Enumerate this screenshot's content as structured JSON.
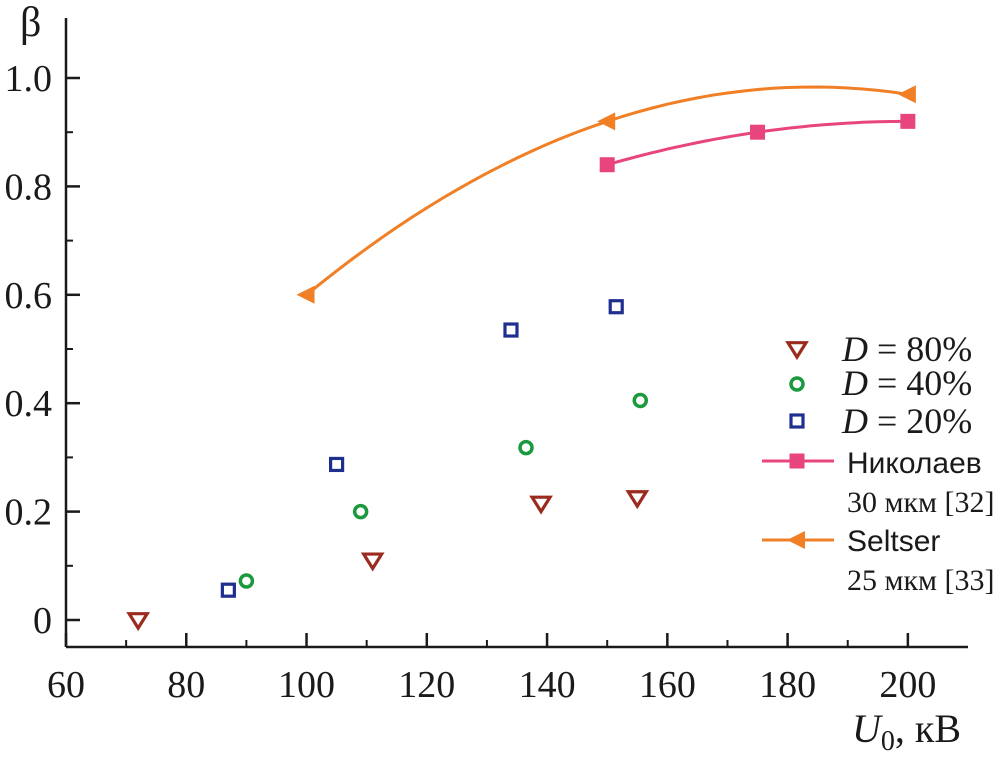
{
  "chart_data": {
    "type": "scatter",
    "xlabel": "U",
    "xlabel_sub": "0",
    "xlabel_unit": ", кВ",
    "ylabel": "β",
    "xlim": [
      60,
      210
    ],
    "ylim": [
      -0.05,
      1.07
    ],
    "xticks": [
      60,
      80,
      100,
      120,
      140,
      160,
      180,
      200
    ],
    "yticks": [
      0,
      0.2,
      0.4,
      0.6,
      0.8,
      1.0
    ],
    "ytick_labels": [
      "0",
      "0.2",
      "0.4",
      "0.6",
      "0.8",
      "1.0"
    ],
    "legend_position": "right",
    "series": [
      {
        "name": "D = 80%",
        "label_italic": "D",
        "label_rest": " = 80%",
        "marker": "triangle-down",
        "color": "#9b2b1e",
        "x": [
          72,
          111,
          139,
          155
        ],
        "y": [
          0.0,
          0.11,
          0.215,
          0.225
        ]
      },
      {
        "name": "D = 40%",
        "label_italic": "D",
        "label_rest": " = 40%",
        "marker": "circle",
        "color": "#1a9a3c",
        "x": [
          90,
          109,
          136.5,
          155.5
        ],
        "y": [
          0.072,
          0.2,
          0.318,
          0.405
        ]
      },
      {
        "name": "D = 20%",
        "label_italic": "D",
        "label_rest": " = 20%",
        "marker": "square-open",
        "color": "#1f2f8f",
        "x": [
          87,
          105,
          134,
          151.5
        ],
        "y": [
          0.055,
          0.287,
          0.535,
          0.578
        ]
      },
      {
        "name": "Николаев 30 мкм [32]",
        "label_line1": "Николаев",
        "label_line2": "30 мкм [32]",
        "marker": "square-filled",
        "line": true,
        "color": "#e8457e",
        "x": [
          150,
          175,
          200
        ],
        "y": [
          0.84,
          0.9,
          0.92
        ]
      },
      {
        "name": "Seltser 25 мкм [33]",
        "label_line1": "Seltser",
        "label_line2": "25 мкм [33]",
        "marker": "triangle-left",
        "line": true,
        "color": "#f07f25",
        "x": [
          100,
          150,
          200
        ],
        "y": [
          0.6,
          0.92,
          0.97
        ]
      }
    ]
  }
}
